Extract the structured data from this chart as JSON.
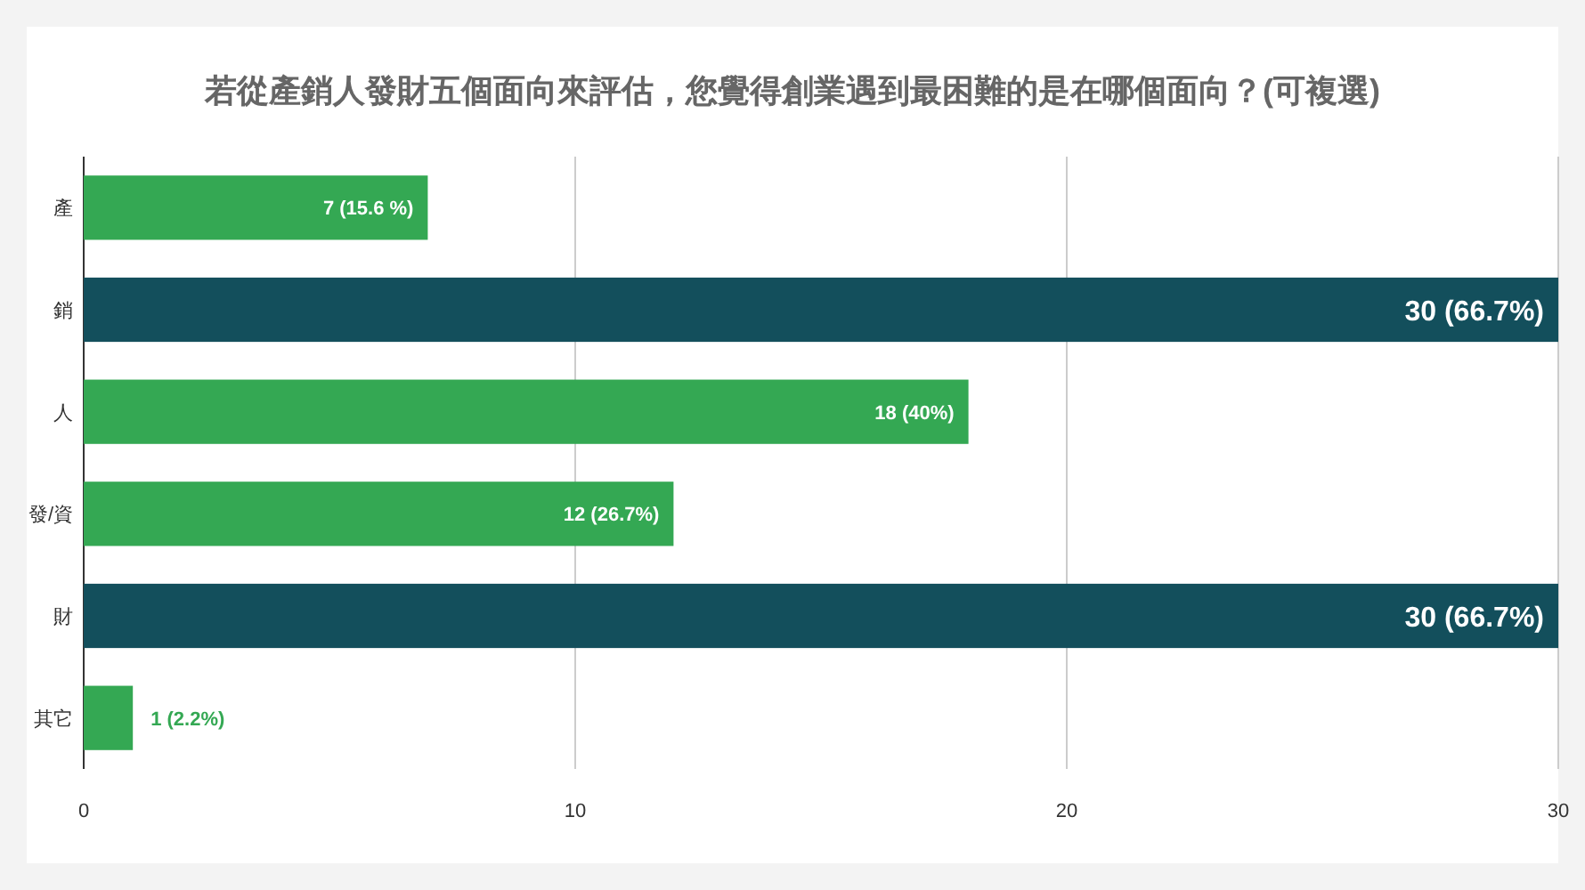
{
  "chart_data": {
    "type": "bar",
    "orientation": "horizontal",
    "title": "若從產銷人發財五個面向來評估，您覺得創業遇到最困難的是在哪個面向？(可複選)",
    "categories": [
      "產",
      "銷",
      "人",
      "發/資",
      "財",
      "其它"
    ],
    "values": [
      7,
      30,
      18,
      12,
      30,
      1
    ],
    "colors": [
      "#34a853",
      "#134f5c",
      "#34a853",
      "#34a853",
      "#134f5c",
      "#34a853"
    ],
    "value_labels": [
      "7 (15.6 %)",
      "30 (66.7%)",
      "18 (40%)",
      "12 (26.7%)",
      "30 (66.7%)",
      "1 (2.2%)"
    ],
    "xlim": [
      0,
      30
    ],
    "xticks": [
      0,
      10,
      20,
      30
    ],
    "grid": "x"
  }
}
